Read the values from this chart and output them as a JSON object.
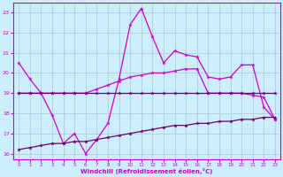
{
  "x": [
    0,
    1,
    2,
    3,
    4,
    5,
    6,
    7,
    8,
    9,
    10,
    11,
    12,
    13,
    14,
    15,
    16,
    17,
    18,
    19,
    20,
    21,
    22,
    23
  ],
  "line1": [
    20.5,
    19.7,
    19.0,
    17.9,
    16.5,
    17.0,
    16.0,
    16.7,
    17.5,
    19.7,
    22.4,
    23.2,
    21.8,
    20.5,
    21.1,
    20.9,
    20.8,
    19.8,
    19.7,
    19.8,
    20.4,
    20.4,
    18.3,
    17.7
  ],
  "line2": [
    19.0,
    19.0,
    19.0,
    19.0,
    19.0,
    19.0,
    19.0,
    19.2,
    19.4,
    19.6,
    19.8,
    19.9,
    20.0,
    20.0,
    20.1,
    20.2,
    20.2,
    19.0,
    19.0,
    19.0,
    19.0,
    18.9,
    18.8,
    17.7
  ],
  "line3": [
    19.0,
    19.0,
    19.0,
    19.0,
    19.0,
    19.0,
    19.0,
    19.0,
    19.0,
    19.0,
    19.0,
    19.0,
    19.0,
    19.0,
    19.0,
    19.0,
    19.0,
    19.0,
    19.0,
    19.0,
    19.0,
    19.0,
    19.0,
    19.0
  ],
  "line4": [
    16.2,
    16.3,
    16.4,
    16.5,
    16.5,
    16.6,
    16.6,
    16.7,
    16.8,
    16.9,
    17.0,
    17.1,
    17.2,
    17.3,
    17.4,
    17.4,
    17.5,
    17.5,
    17.6,
    17.6,
    17.7,
    17.7,
    17.8,
    17.8
  ],
  "color_bright": "#cc00cc",
  "color_dark": "#660066",
  "bg_color": "#cceeff",
  "grid_color": "#aacccc",
  "xlabel": "Windchill (Refroidissement éolien,°C)",
  "ylim": [
    15.7,
    23.5
  ],
  "xlim": [
    -0.5,
    23.5
  ],
  "yticks": [
    16,
    17,
    18,
    19,
    20,
    21,
    22,
    23
  ],
  "xticks": [
    0,
    1,
    2,
    3,
    4,
    5,
    6,
    7,
    8,
    9,
    10,
    11,
    12,
    13,
    14,
    15,
    16,
    17,
    18,
    19,
    20,
    21,
    22,
    23
  ],
  "marker": "*",
  "markersize": 3.5
}
